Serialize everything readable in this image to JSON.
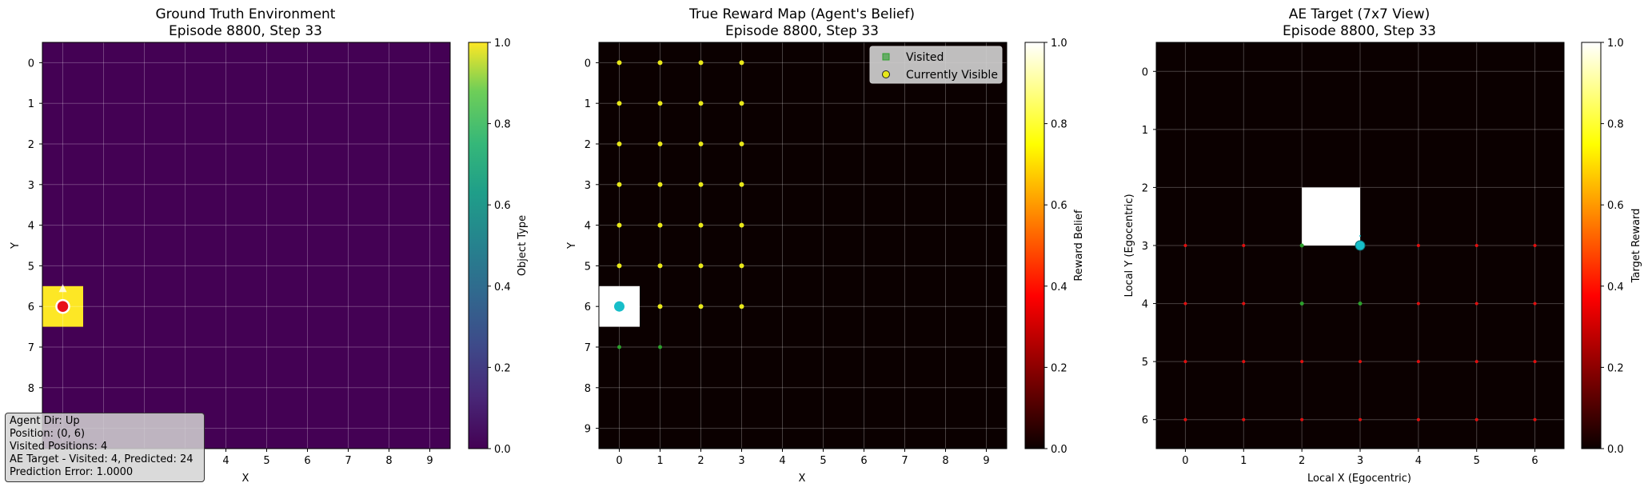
{
  "info_box": {
    "lines": [
      "Agent Dir: Up",
      "Position: (0, 6)",
      "Visited Positions: 4",
      "AE Target - Visited: 4, Predicted: 24",
      "Prediction Error: 1.0000"
    ]
  },
  "colors": {
    "agent_gt": "#e8101a",
    "agent_marker": "#17bec9",
    "visited_marker": "#2ca02c",
    "visible_marker": "#e8e81a",
    "goal_cell": "#fde725",
    "background_cell": "#440154"
  },
  "chart_data": [
    {
      "type": "heatmap",
      "title": [
        "Ground Truth Environment",
        "Episode 8800, Step 33"
      ],
      "xlabel": "X",
      "ylabel": "Y",
      "xticks": [
        4,
        5,
        6,
        7,
        8,
        9
      ],
      "yticks": [
        0,
        1,
        2,
        3,
        4,
        5,
        6,
        7,
        8
      ],
      "grid_size": 10,
      "cells": [
        {
          "x": 0,
          "y": 6,
          "value": 1.0
        }
      ],
      "default_value": 0.0,
      "agent": {
        "x": 0,
        "y": 6,
        "direction": "Up"
      },
      "colorbar": {
        "label": "Object Type",
        "colormap": "viridis",
        "range": [
          0,
          1
        ],
        "ticks": [
          "0.0",
          "0.2",
          "0.4",
          "0.6",
          "0.8",
          "1.0"
        ]
      },
      "grid": true
    },
    {
      "type": "heatmap",
      "title": [
        "True Reward Map (Agent's Belief)",
        "Episode 8800, Step 33"
      ],
      "xlabel": "X",
      "ylabel": "Y",
      "xticks": [
        0,
        1,
        2,
        3,
        4,
        5,
        6,
        7,
        8,
        9
      ],
      "yticks": [
        0,
        1,
        2,
        3,
        4,
        5,
        6,
        7,
        8,
        9
      ],
      "grid_size": 10,
      "cells": [
        {
          "x": 0,
          "y": 6,
          "value": 1.0
        }
      ],
      "default_value": 0.0,
      "agent": {
        "x": 0,
        "y": 6
      },
      "visited": [
        [
          0,
          7
        ],
        [
          1,
          7
        ]
      ],
      "visible": [
        [
          0,
          0
        ],
        [
          1,
          0
        ],
        [
          2,
          0
        ],
        [
          3,
          0
        ],
        [
          0,
          1
        ],
        [
          1,
          1
        ],
        [
          2,
          1
        ],
        [
          3,
          1
        ],
        [
          0,
          2
        ],
        [
          1,
          2
        ],
        [
          2,
          2
        ],
        [
          3,
          2
        ],
        [
          0,
          3
        ],
        [
          1,
          3
        ],
        [
          2,
          3
        ],
        [
          3,
          3
        ],
        [
          0,
          4
        ],
        [
          1,
          4
        ],
        [
          2,
          4
        ],
        [
          3,
          4
        ],
        [
          0,
          5
        ],
        [
          1,
          5
        ],
        [
          2,
          5
        ],
        [
          3,
          5
        ],
        [
          1,
          6
        ],
        [
          2,
          6
        ],
        [
          3,
          6
        ]
      ],
      "legend": {
        "position": "upper right",
        "entries": [
          "Visited",
          "Currently Visible"
        ]
      },
      "colorbar": {
        "label": "Reward Belief",
        "colormap": "hot",
        "range": [
          0,
          1
        ],
        "ticks": [
          "0.0",
          "0.2",
          "0.4",
          "0.6",
          "0.8",
          "1.0"
        ]
      },
      "grid": true
    },
    {
      "type": "heatmap",
      "title": [
        "AE Target (7x7 View)",
        "Episode 8800, Step 33"
      ],
      "xlabel": "Local X (Egocentric)",
      "ylabel": "Local Y (Egocentric)",
      "xticks": [
        0,
        1,
        2,
        3,
        4,
        5,
        6
      ],
      "yticks": [
        0,
        1,
        2,
        3,
        4,
        5,
        6
      ],
      "grid_size": 7,
      "cells": [
        {
          "x": 3,
          "y": 3,
          "value": 1.0
        }
      ],
      "default_value": 0.0,
      "agent": {
        "x": 3,
        "y": 3
      },
      "visited": [
        [
          2,
          3
        ],
        [
          2,
          4
        ],
        [
          3,
          4
        ]
      ],
      "predicted": [
        [
          0,
          3
        ],
        [
          1,
          3
        ],
        [
          4,
          3
        ],
        [
          5,
          3
        ],
        [
          6,
          3
        ],
        [
          0,
          4
        ],
        [
          1,
          4
        ],
        [
          4,
          4
        ],
        [
          5,
          4
        ],
        [
          6,
          4
        ],
        [
          0,
          5
        ],
        [
          1,
          5
        ],
        [
          2,
          5
        ],
        [
          3,
          5
        ],
        [
          4,
          5
        ],
        [
          5,
          5
        ],
        [
          6,
          5
        ],
        [
          0,
          6
        ],
        [
          1,
          6
        ],
        [
          2,
          6
        ],
        [
          3,
          6
        ],
        [
          4,
          6
        ],
        [
          5,
          6
        ],
        [
          6,
          6
        ]
      ],
      "colorbar": {
        "label": "Target Reward",
        "colormap": "hot",
        "range": [
          0,
          1
        ],
        "ticks": [
          "0.0",
          "0.2",
          "0.4",
          "0.6",
          "0.8",
          "1.0"
        ]
      },
      "grid": true
    }
  ]
}
